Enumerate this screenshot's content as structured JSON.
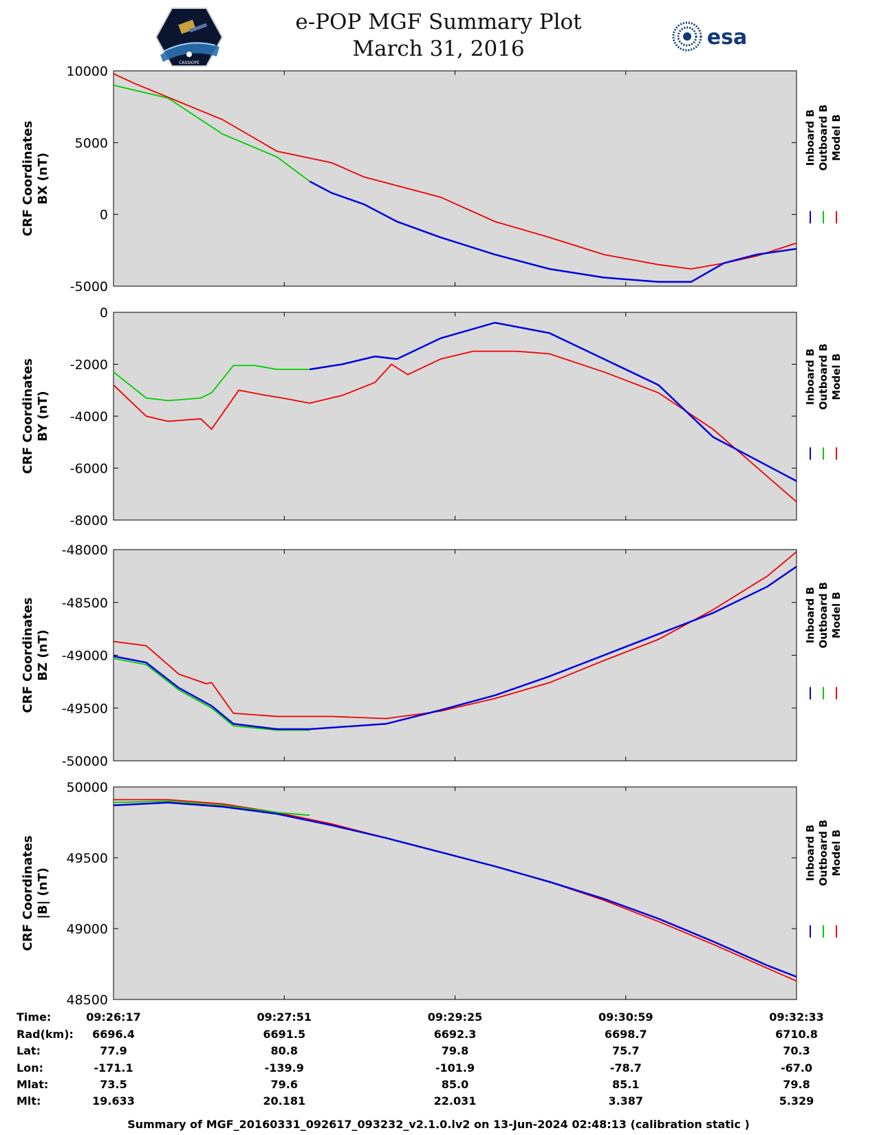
{
  "header": {
    "title_line1": "e-POP MGF Summary Plot",
    "title_line2": "March 31, 2016",
    "esa_logo_text": "esa",
    "mission_logo_text": "CASSIOPE"
  },
  "colors": {
    "inboard": "#0000dd",
    "outboard": "#00cc00",
    "model": "#ee0000",
    "plot_background": "#d9d9d9"
  },
  "legend": {
    "entries": [
      {
        "label": "Inboard B",
        "color": "#0000dd"
      },
      {
        "label": "Outboard B",
        "color": "#00cc00"
      },
      {
        "label": "Model B",
        "color": "#ee0000"
      }
    ]
  },
  "chart_data": [
    {
      "type": "line",
      "ylabel_line1": "CRF Coordinates",
      "ylabel_line2": "BX (nT)",
      "ylim": [
        -5000,
        10000
      ],
      "yticks": [
        -5000,
        0,
        5000,
        10000
      ],
      "x_minutes": [
        0,
        6.2667
      ],
      "series": [
        {
          "name": "Model B",
          "color": "#ee0000",
          "x": [
            0,
            0.2,
            1.0,
            1.5,
            2.0,
            2.3,
            3.0,
            3.5,
            4.0,
            4.5,
            5.0,
            5.3,
            5.6,
            5.9,
            6.2667
          ],
          "y": [
            9800,
            9100,
            6600,
            4400,
            3600,
            2600,
            1200,
            -500,
            -1600,
            -2800,
            -3500,
            -3800,
            -3400,
            -2900,
            -2000
          ]
        },
        {
          "name": "Outboard B",
          "color": "#00cc00",
          "x": [
            0,
            0.5,
            1.0,
            1.5,
            1.8
          ],
          "y": [
            9000,
            8100,
            5600,
            4000,
            2300
          ]
        },
        {
          "name": "Inboard B",
          "color": "#0000dd",
          "x": [
            1.8,
            2.0,
            2.3,
            2.6,
            3.0,
            3.5,
            4.0,
            4.5,
            5.0,
            5.3,
            5.6,
            5.9,
            6.2667
          ],
          "y": [
            2300,
            1500,
            700,
            -500,
            -1600,
            -2800,
            -3800,
            -4400,
            -4700,
            -4700,
            -3400,
            -2800,
            -2400
          ]
        }
      ]
    },
    {
      "type": "line",
      "ylabel_line1": "CRF Coordinates",
      "ylabel_line2": "BY (nT)",
      "ylim": [
        -8000,
        0
      ],
      "yticks": [
        -8000,
        -6000,
        -4000,
        -2000,
        0
      ],
      "x_minutes": [
        0,
        6.2667
      ],
      "series": [
        {
          "name": "Model B",
          "color": "#ee0000",
          "x": [
            0,
            0.3,
            0.5,
            0.8,
            0.9,
            1.15,
            1.4,
            1.55,
            1.8,
            2.1,
            2.4,
            2.55,
            2.7,
            3.0,
            3.3,
            3.7,
            4.0,
            4.5,
            5.0,
            5.5,
            6.2667
          ],
          "y": [
            -2800,
            -4000,
            -4200,
            -4100,
            -4500,
            -3000,
            -3200,
            -3300,
            -3500,
            -3200,
            -2700,
            -2000,
            -2400,
            -1800,
            -1500,
            -1500,
            -1600,
            -2300,
            -3100,
            -4500,
            -7300
          ]
        },
        {
          "name": "Outboard B",
          "color": "#00cc00",
          "x": [
            0,
            0.3,
            0.5,
            0.8,
            0.9,
            1.1,
            1.3,
            1.5,
            1.8
          ],
          "y": [
            -2300,
            -3300,
            -3400,
            -3300,
            -3100,
            -2050,
            -2050,
            -2200,
            -2200
          ]
        },
        {
          "name": "Inboard B",
          "color": "#0000dd",
          "x": [
            1.8,
            2.1,
            2.4,
            2.6,
            3.0,
            3.5,
            4.0,
            4.5,
            5.0,
            5.5,
            6.2667
          ],
          "y": [
            -2200,
            -2000,
            -1700,
            -1800,
            -1000,
            -400,
            -800,
            -1800,
            -2800,
            -4800,
            -6500
          ]
        }
      ]
    },
    {
      "type": "line",
      "ylabel_line1": "CRF Coordinates",
      "ylabel_line2": "BZ (nT)",
      "ylim": [
        -50000,
        -48000
      ],
      "yticks": [
        -50000,
        -49500,
        -49000,
        -48500,
        -48000
      ],
      "x_minutes": [
        0,
        6.2667
      ],
      "series": [
        {
          "name": "Model B",
          "color": "#ee0000",
          "x": [
            0,
            0.3,
            0.6,
            0.85,
            0.9,
            1.1,
            1.5,
            2.0,
            2.5,
            3.0,
            3.5,
            4.0,
            4.5,
            5.0,
            5.5,
            6.0,
            6.2667
          ],
          "y": [
            -48870,
            -48910,
            -49180,
            -49270,
            -49260,
            -49550,
            -49580,
            -49580,
            -49600,
            -49530,
            -49410,
            -49260,
            -49050,
            -48850,
            -48570,
            -48250,
            -48020
          ]
        },
        {
          "name": "Outboard B",
          "color": "#00cc00",
          "x": [
            0,
            0.3,
            0.6,
            0.9,
            1.1,
            1.5,
            1.8
          ],
          "y": [
            -49030,
            -49090,
            -49330,
            -49500,
            -49670,
            -49710,
            -49710
          ]
        },
        {
          "name": "Inboard B",
          "color": "#0000dd",
          "x": [
            0,
            0.3,
            0.6,
            0.9,
            1.1,
            1.5,
            1.8,
            2.5,
            3.0,
            3.5,
            4.0,
            4.5,
            5.0,
            5.5,
            6.0,
            6.2667
          ],
          "y": [
            -49010,
            -49070,
            -49310,
            -49480,
            -49650,
            -49700,
            -49700,
            -49650,
            -49520,
            -49380,
            -49200,
            -49000,
            -48800,
            -48600,
            -48350,
            -48160
          ]
        }
      ]
    },
    {
      "type": "line",
      "ylabel_line1": "CRF Coordinates",
      "ylabel_line2": "|B| (nT)",
      "ylim": [
        48500,
        50000
      ],
      "yticks": [
        48500,
        49000,
        49500,
        50000
      ],
      "x_minutes": [
        0,
        6.2667
      ],
      "series": [
        {
          "name": "Model B",
          "color": "#ee0000",
          "x": [
            0,
            0.5,
            1.0,
            1.5,
            2.0,
            2.5,
            3.0,
            3.5,
            4.0,
            4.5,
            5.0,
            5.5,
            6.0,
            6.2667
          ],
          "y": [
            49910,
            49910,
            49880,
            49820,
            49740,
            49640,
            49540,
            49440,
            49330,
            49200,
            49050,
            48890,
            48720,
            48630
          ]
        },
        {
          "name": "Outboard B",
          "color": "#00cc00",
          "x": [
            0,
            0.5,
            1.0,
            1.5,
            1.8
          ],
          "y": [
            49890,
            49900,
            49870,
            49820,
            49800
          ]
        },
        {
          "name": "Inboard B",
          "color": "#0000dd",
          "x": [
            0,
            0.5,
            1.0,
            1.5,
            2.0,
            2.5,
            3.0,
            3.5,
            4.0,
            4.5,
            5.0,
            5.5,
            6.0,
            6.2667
          ],
          "y": [
            49870,
            49890,
            49860,
            49810,
            49730,
            49640,
            49540,
            49440,
            49330,
            49210,
            49070,
            48910,
            48740,
            48660
          ]
        }
      ]
    }
  ],
  "ephemeris": {
    "labels": [
      "Time:",
      "Rad(km):",
      "Lat:",
      "Lon:",
      "Mlat:",
      "Mlt:"
    ],
    "columns": [
      [
        "09:26:17",
        "6696.4",
        "77.9",
        "-171.1",
        "73.5",
        "19.633"
      ],
      [
        "09:27:51",
        "6691.5",
        "80.8",
        "-139.9",
        "79.6",
        "20.181"
      ],
      [
        "09:29:25",
        "6692.3",
        "79.8",
        "-101.9",
        "85.0",
        "22.031"
      ],
      [
        "09:30:59",
        "6698.7",
        "75.7",
        "-78.7",
        "85.1",
        "3.387"
      ],
      [
        "09:32:33",
        "6710.8",
        "70.3",
        "-67.0",
        "79.8",
        "5.329"
      ]
    ]
  },
  "footer": {
    "text": "Summary of MGF_20160331_092617_093232_v2.1.0.lv2 on 13-Jun-2024 02:48:13 (calibration static )"
  }
}
